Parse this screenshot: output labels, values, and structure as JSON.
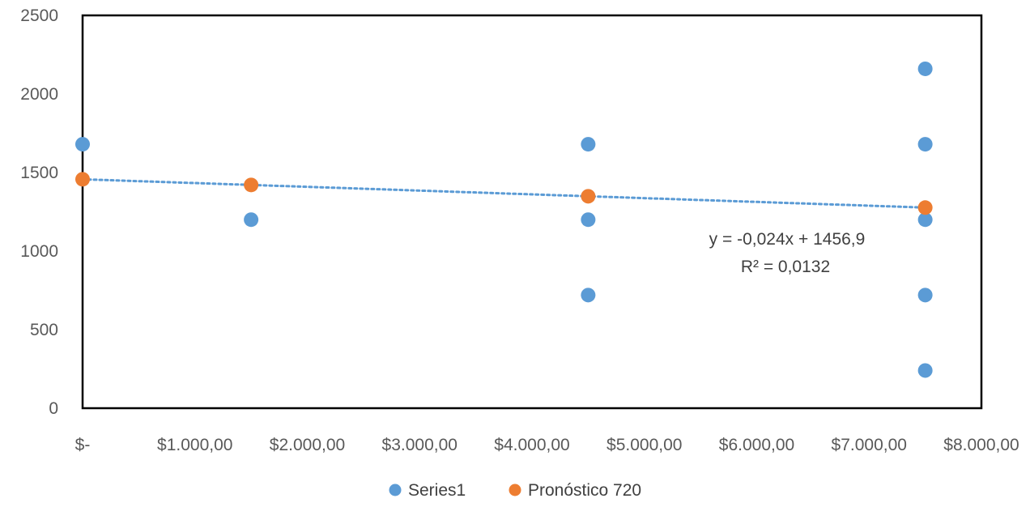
{
  "chart_data": {
    "type": "scatter",
    "title": "",
    "xlabel": "",
    "ylabel": "",
    "xlim": [
      0,
      8000
    ],
    "ylim": [
      0,
      2500
    ],
    "x_ticks": [
      0,
      1000,
      2000,
      3000,
      4000,
      5000,
      6000,
      7000,
      8000
    ],
    "x_tick_labels": [
      "$-",
      "$1.000,00",
      "$2.000,00",
      "$3.000,00",
      "$4.000,00",
      "$5.000,00",
      "$6.000,00",
      "$7.000,00",
      "$8.000,00"
    ],
    "y_ticks": [
      0,
      500,
      1000,
      1500,
      2000,
      2500
    ],
    "y_tick_labels": [
      "0",
      "500",
      "1000",
      "1500",
      "2000",
      "2500"
    ],
    "grid": false,
    "legend_position": "bottom",
    "series": [
      {
        "name": "Series1",
        "color": "#5B9BD5",
        "points": [
          {
            "x": 0,
            "y": 1680
          },
          {
            "x": 1500,
            "y": 1200
          },
          {
            "x": 4500,
            "y": 1680
          },
          {
            "x": 4500,
            "y": 1200
          },
          {
            "x": 4500,
            "y": 720
          },
          {
            "x": 7500,
            "y": 2160
          },
          {
            "x": 7500,
            "y": 1680
          },
          {
            "x": 7500,
            "y": 1200
          },
          {
            "x": 7500,
            "y": 720
          },
          {
            "x": 7500,
            "y": 240
          }
        ]
      },
      {
        "name": "Pronóstico 720",
        "color": "#ED7D31",
        "points": [
          {
            "x": 0,
            "y": 1456.9
          },
          {
            "x": 1500,
            "y": 1420.9
          },
          {
            "x": 4500,
            "y": 1348.9
          },
          {
            "x": 7500,
            "y": 1276.9
          }
        ]
      }
    ],
    "trendline": {
      "series": "Series1",
      "type": "linear",
      "slope": -0.024,
      "intercept": 1456.9,
      "x_range": [
        0,
        7500
      ],
      "color": "#5B9BD5",
      "style": "dotted",
      "equation_label": "y = -0,024x + 1456,9",
      "r2_label": "R² = 0,0132"
    }
  }
}
